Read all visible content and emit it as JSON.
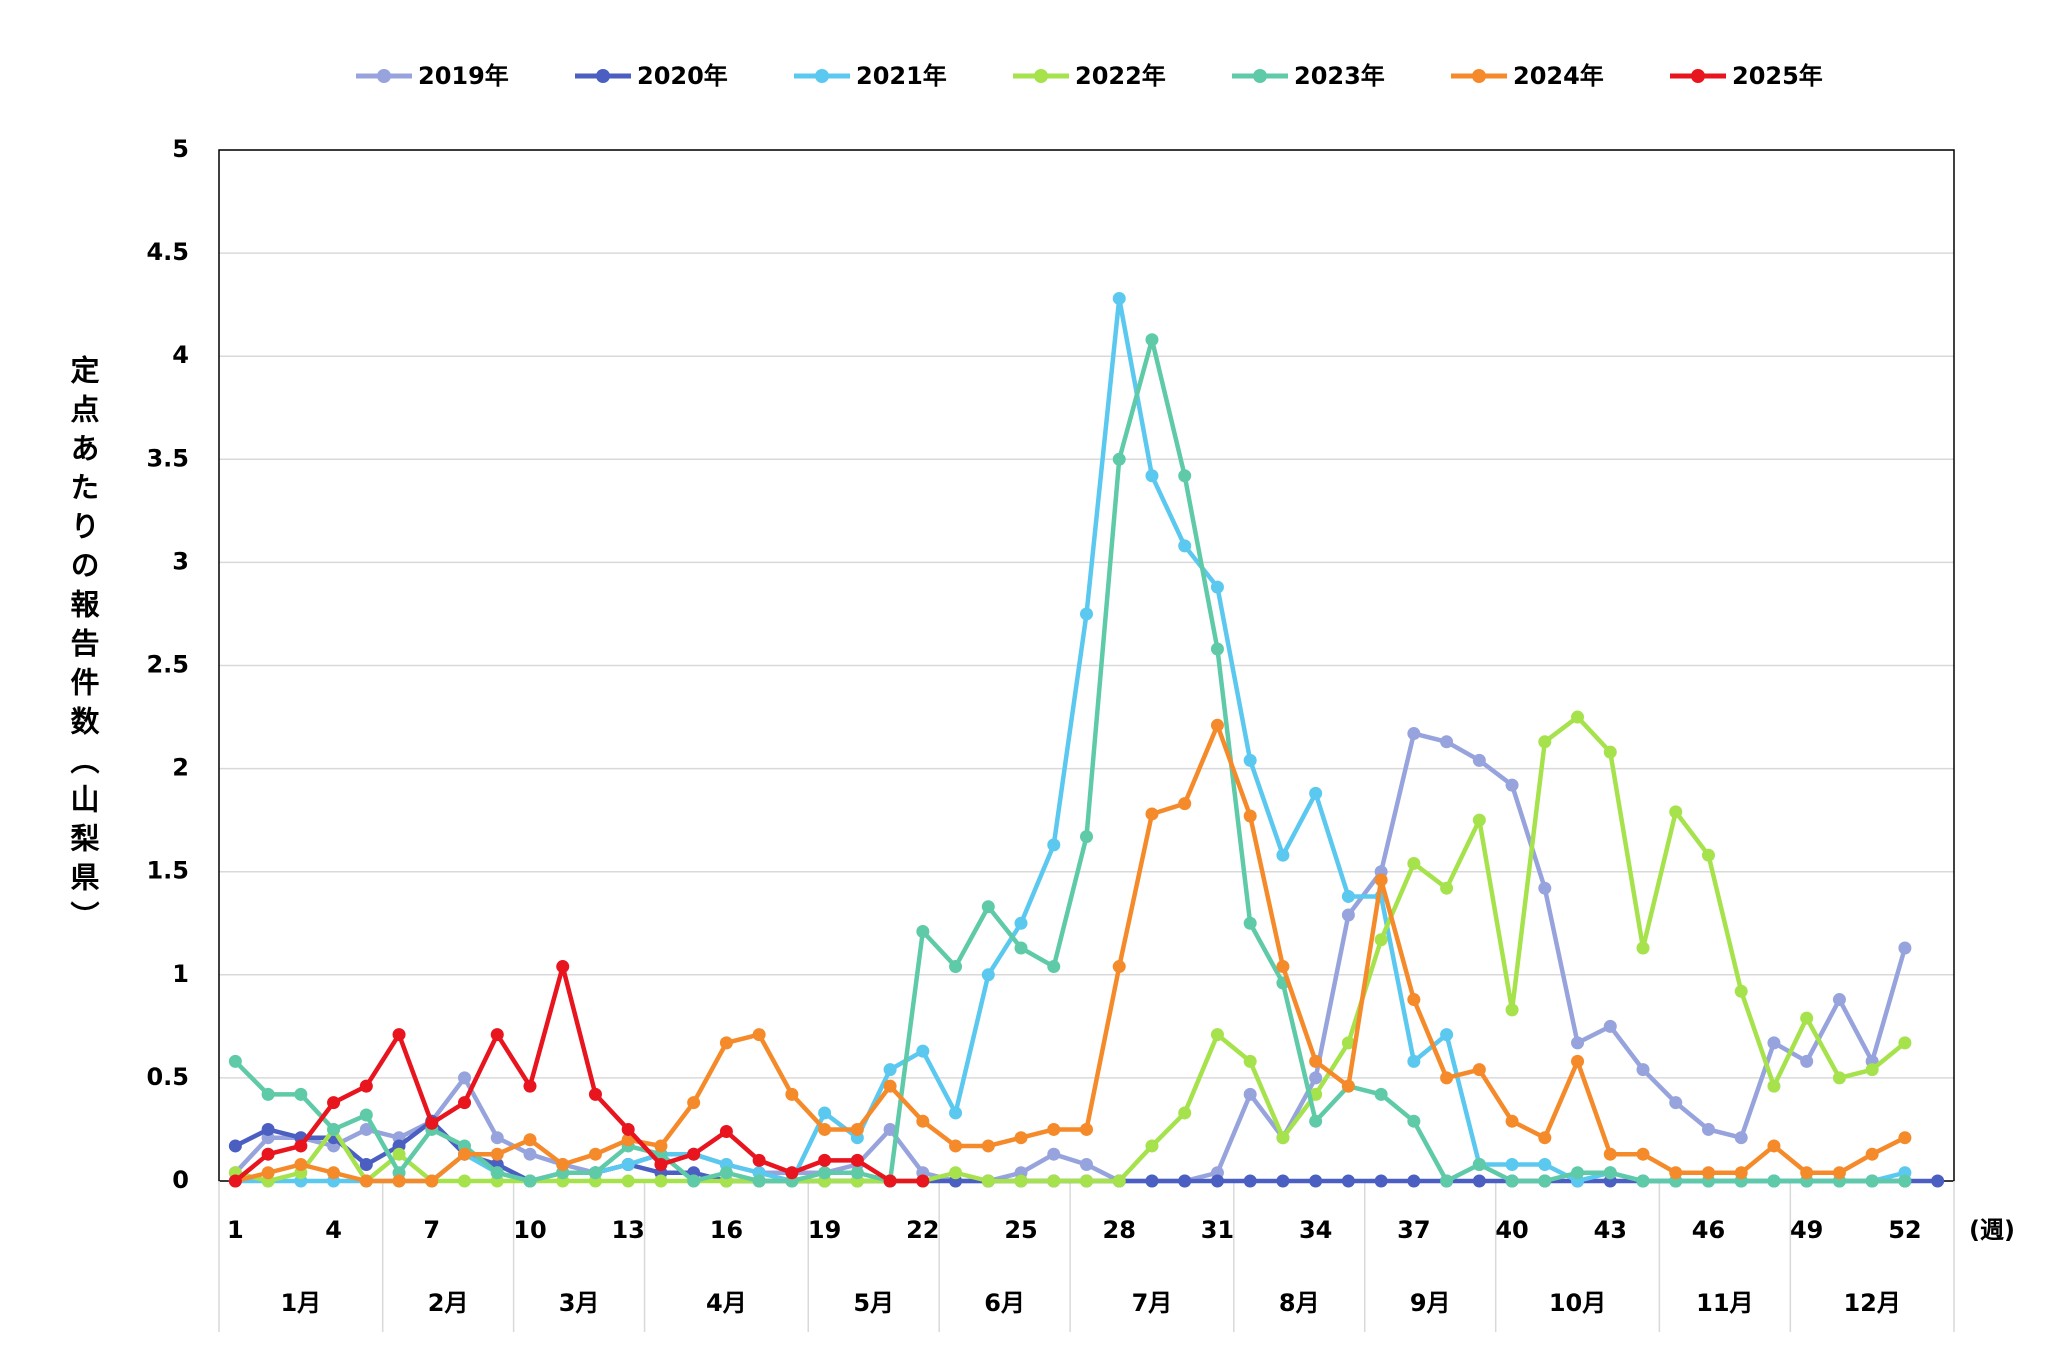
{
  "chart_data": {
    "type": "line",
    "y_label": "定点あたりの報告件数（山梨県）",
    "x_unit_label": "(週)",
    "x": [
      1,
      2,
      3,
      4,
      5,
      6,
      7,
      8,
      9,
      10,
      11,
      12,
      13,
      14,
      15,
      16,
      17,
      18,
      19,
      20,
      21,
      22,
      23,
      24,
      25,
      26,
      27,
      28,
      29,
      30,
      31,
      32,
      33,
      34,
      35,
      36,
      37,
      38,
      39,
      40,
      41,
      42,
      43,
      44,
      45,
      46,
      47,
      48,
      49,
      50,
      51,
      52,
      53
    ],
    "xlim": [
      0.5,
      53.5
    ],
    "xticks": [
      1,
      4,
      7,
      10,
      13,
      16,
      19,
      22,
      25,
      28,
      31,
      34,
      37,
      40,
      43,
      46,
      49,
      52
    ],
    "ylim": [
      0,
      5
    ],
    "yticks": [
      0,
      0.5,
      1,
      1.5,
      2,
      2.5,
      3,
      3.5,
      4,
      4.5,
      5
    ],
    "grid": true,
    "legend": "top",
    "months": [
      "1月",
      "2月",
      "3月",
      "4月",
      "5月",
      "6月",
      "7月",
      "8月",
      "9月",
      "10月",
      "11月",
      "12月"
    ],
    "month_edges": [
      0.5,
      5.5,
      9.5,
      13.5,
      18.5,
      22.5,
      26.5,
      31.5,
      35.5,
      39.5,
      44.5,
      48.5,
      53.5
    ],
    "series": [
      {
        "name": "2019年",
        "color": "#97a3dc",
        "values": [
          0.04,
          0.21,
          0.21,
          0.17,
          0.25,
          0.21,
          0.29,
          0.5,
          0.21,
          0.13,
          0.08,
          0.04,
          0.08,
          0.13,
          0.13,
          0.08,
          0.04,
          0.04,
          0.04,
          0.08,
          0.25,
          0.04,
          0,
          0,
          0.04,
          0.13,
          0.08,
          0,
          0,
          0,
          0.04,
          0.42,
          0.21,
          0.5,
          1.29,
          1.5,
          2.17,
          2.13,
          2.04,
          1.92,
          1.42,
          0.67,
          0.75,
          0.54,
          0.38,
          0.25,
          0.21,
          0.67,
          0.58,
          0.88,
          0.58,
          1.13,
          null
        ]
      },
      {
        "name": "2020年",
        "color": "#4a5fc1",
        "values": [
          0.17,
          0.25,
          0.21,
          0.21,
          0.08,
          0.17,
          0.29,
          0.13,
          0.08,
          0,
          0.04,
          0.04,
          0.08,
          0.04,
          0.04,
          0,
          0,
          0,
          0,
          0,
          0,
          0,
          0,
          0,
          0,
          0,
          0,
          0,
          0,
          0,
          0,
          0,
          0,
          0,
          0,
          0,
          0,
          0,
          0,
          0,
          0,
          0,
          0,
          0,
          0,
          0,
          0,
          0,
          0,
          0,
          0,
          0,
          0
        ]
      },
      {
        "name": "2021年",
        "color": "#5bc8f0",
        "values": [
          0,
          0,
          0,
          0,
          0,
          0,
          0,
          0.13,
          0.04,
          0,
          0.04,
          0.04,
          0.08,
          0.13,
          0.13,
          0.08,
          0.04,
          0,
          0.33,
          0.21,
          0.54,
          0.63,
          0.33,
          1.0,
          1.25,
          1.63,
          2.75,
          4.28,
          3.42,
          3.08,
          2.88,
          2.04,
          1.58,
          1.88,
          1.38,
          1.38,
          0.58,
          0.71,
          0.08,
          0.08,
          0.08,
          0,
          0.04,
          0,
          0,
          0,
          0,
          0,
          0,
          0,
          0,
          0.04,
          null
        ]
      },
      {
        "name": "2022年",
        "color": "#a6e24c",
        "values": [
          0.04,
          0,
          0.04,
          0.25,
          0,
          0.13,
          0,
          0,
          0,
          0,
          0,
          0,
          0,
          0,
          0,
          0,
          0,
          0,
          0,
          0,
          0,
          0,
          0.04,
          0,
          0,
          0,
          0,
          0,
          0.17,
          0.33,
          0.71,
          0.58,
          0.21,
          0.42,
          0.67,
          1.17,
          1.54,
          1.42,
          1.75,
          0.83,
          2.13,
          2.25,
          2.08,
          1.13,
          1.79,
          1.58,
          0.92,
          0.46,
          0.79,
          0.5,
          0.54,
          0.67,
          null
        ]
      },
      {
        "name": "2023年",
        "color": "#5fcaa8",
        "values": [
          0.58,
          0.42,
          0.42,
          0.25,
          0.32,
          0.04,
          0.25,
          0.17,
          0.04,
          0,
          0.04,
          0.04,
          0.17,
          0.13,
          0,
          0.04,
          0,
          0,
          0.04,
          0.04,
          0,
          1.21,
          1.04,
          1.33,
          1.13,
          1.04,
          1.67,
          3.5,
          4.08,
          3.42,
          2.58,
          1.25,
          0.96,
          0.29,
          0.46,
          0.42,
          0.29,
          0,
          0.08,
          0,
          0,
          0.04,
          0.04,
          0,
          0,
          0,
          0,
          0,
          0,
          0,
          0,
          0,
          null
        ]
      },
      {
        "name": "2024年",
        "color": "#f58a2a",
        "values": [
          0,
          0.04,
          0.08,
          0.04,
          0,
          0,
          0,
          0.13,
          0.13,
          0.2,
          0.08,
          0.13,
          0.2,
          0.17,
          0.38,
          0.67,
          0.71,
          0.42,
          0.25,
          0.25,
          0.46,
          0.29,
          0.17,
          0.17,
          0.21,
          0.25,
          0.25,
          1.04,
          1.78,
          1.83,
          2.21,
          1.77,
          1.04,
          0.58,
          0.46,
          1.46,
          0.88,
          0.5,
          0.54,
          0.29,
          0.21,
          0.58,
          0.13,
          0.13,
          0.04,
          0.04,
          0.04,
          0.17,
          0.04,
          0.04,
          0.13,
          0.21,
          null
        ]
      },
      {
        "name": "2025年",
        "color": "#e8141e",
        "values": [
          0,
          0.13,
          0.17,
          0.38,
          0.46,
          0.71,
          0.28,
          0.38,
          0.71,
          0.46,
          1.04,
          0.42,
          0.25,
          0.08,
          0.13,
          0.24,
          0.1,
          0.04,
          0.1,
          0.1,
          0,
          0,
          null,
          null,
          null,
          null,
          null,
          null,
          null,
          null,
          null,
          null,
          null,
          null,
          null,
          null,
          null,
          null,
          null,
          null,
          null,
          null,
          null,
          null,
          null,
          null,
          null,
          null,
          null,
          null,
          null,
          null,
          null
        ]
      }
    ]
  }
}
